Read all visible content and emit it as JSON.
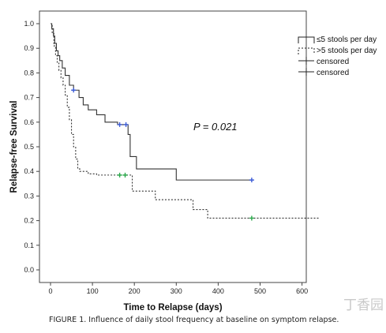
{
  "chart_data": {
    "type": "line",
    "subtype": "kaplan-meier step curve",
    "xlabel": "Time to Relapse (days)",
    "ylabel": "Relapse-free Survival",
    "xlim": [
      0,
      640
    ],
    "ylim": [
      0,
      1.0
    ],
    "x_ticks": [
      0,
      100,
      200,
      300,
      400,
      500,
      600
    ],
    "y_ticks": [
      0.0,
      0.1,
      0.2,
      0.3,
      0.4,
      0.5,
      0.6,
      0.7,
      0.8,
      0.9,
      1.0
    ],
    "grid": false,
    "legend_position": "top-right",
    "annotation": "P = 0.021",
    "series": [
      {
        "name": "≤5 stools per day",
        "line_style": "solid",
        "color": "#333333",
        "x": [
          0,
          3,
          7,
          10,
          14,
          18,
          22,
          28,
          35,
          45,
          55,
          68,
          78,
          90,
          110,
          130,
          160,
          175,
          185,
          190,
          205,
          300,
          480
        ],
        "y": [
          1.0,
          0.98,
          0.95,
          0.92,
          0.89,
          0.87,
          0.85,
          0.82,
          0.79,
          0.75,
          0.73,
          0.7,
          0.67,
          0.65,
          0.63,
          0.6,
          0.59,
          0.59,
          0.55,
          0.46,
          0.41,
          0.365,
          0.365
        ],
        "censored": [
          [
            55,
            0.73
          ],
          [
            165,
            0.59
          ],
          [
            180,
            0.59
          ],
          [
            480,
            0.365
          ]
        ]
      },
      {
        "name": ">5 stools per day",
        "line_style": "dashed",
        "color": "#333333",
        "x": [
          0,
          4,
          8,
          12,
          16,
          20,
          25,
          30,
          35,
          40,
          45,
          50,
          55,
          60,
          65,
          70,
          80,
          90,
          100,
          110,
          195,
          250,
          340,
          375,
          640
        ],
        "y": [
          1.0,
          0.96,
          0.91,
          0.87,
          0.84,
          0.81,
          0.78,
          0.75,
          0.71,
          0.66,
          0.61,
          0.55,
          0.5,
          0.45,
          0.41,
          0.4,
          0.4,
          0.39,
          0.39,
          0.385,
          0.32,
          0.285,
          0.245,
          0.21,
          0.21
        ],
        "censored": [
          [
            165,
            0.385
          ],
          [
            178,
            0.385
          ],
          [
            480,
            0.21
          ]
        ]
      }
    ],
    "legend": [
      {
        "label": "≤5 stools per day",
        "marker": "solid-line"
      },
      {
        "label": ">5 stools per day",
        "marker": "dashed-line"
      },
      {
        "label": "censored",
        "marker": "plus"
      },
      {
        "label": "censored",
        "marker": "plus"
      }
    ],
    "censor_colors": {
      "le5": "#3b5bd6",
      "gt5": "#2aa84a"
    }
  },
  "caption": "FIGURE 1. Influence of daily stool frequency at baseline on symptom relapse.",
  "watermark": "丁香园"
}
